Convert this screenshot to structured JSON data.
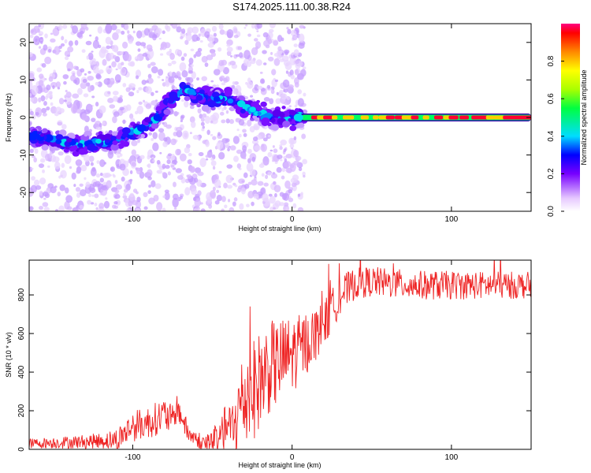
{
  "title": "S174.2025.111.00.38.R24",
  "chart_data": [
    {
      "type": "heatmap",
      "xlabel": "Height of straight line (km)",
      "ylabel": "Frequency (Hz)",
      "xlim": [
        -165,
        150
      ],
      "ylim": [
        -25,
        25
      ],
      "xticks": [
        -100,
        0,
        100
      ],
      "yticks": [
        -20,
        -10,
        0,
        10,
        20
      ],
      "colorbar": {
        "label": "Normalized spectral amplitude",
        "range": [
          0.0,
          1.0
        ],
        "ticks": [
          "0.0",
          "0.2",
          "0.4",
          "0.6",
          "0.8"
        ]
      },
      "ridge": {
        "x": [
          -160,
          -140,
          -125,
          -110,
          -95,
          -85,
          -75,
          -68,
          -60,
          -50,
          -42,
          -35,
          -25,
          -15,
          -5,
          5,
          10,
          50,
          100,
          150
        ],
        "y": [
          -5,
          -7,
          -7,
          -6,
          -3,
          0,
          5,
          8,
          6,
          5,
          5,
          4,
          2,
          0,
          0,
          0,
          0,
          0,
          0,
          0
        ]
      }
    },
    {
      "type": "line",
      "xlabel": "Height of straight line (km)",
      "ylabel": "SNR (10 * v/v)",
      "xlim": [
        -165,
        150
      ],
      "ylim": [
        0,
        980
      ],
      "xticks": [
        -100,
        0,
        100
      ],
      "yticks": [
        0,
        200,
        400,
        600,
        800
      ],
      "color": "#ee2222",
      "envelope": {
        "x": [
          -165,
          -130,
          -110,
          -100,
          -90,
          -80,
          -75,
          -72,
          -65,
          -55,
          -45,
          -42,
          -38,
          -35,
          -32,
          -28,
          -25,
          -20,
          -15,
          -10,
          -5,
          0,
          5,
          10,
          15,
          20,
          25,
          30,
          40,
          50,
          60,
          80,
          100,
          120,
          150
        ],
        "y": [
          30,
          40,
          50,
          120,
          140,
          180,
          150,
          220,
          80,
          30,
          40,
          120,
          100,
          150,
          250,
          270,
          300,
          360,
          420,
          440,
          470,
          490,
          520,
          560,
          600,
          650,
          720,
          800,
          860,
          870,
          860,
          850,
          850,
          850,
          850
        ]
      },
      "noise_amplitude": {
        "x": [
          -165,
          -120,
          -100,
          -80,
          -60,
          -40,
          -30,
          -20,
          0,
          20,
          40,
          150
        ],
        "y": [
          25,
          40,
          80,
          90,
          40,
          120,
          260,
          260,
          200,
          120,
          80,
          70
        ]
      }
    }
  ]
}
